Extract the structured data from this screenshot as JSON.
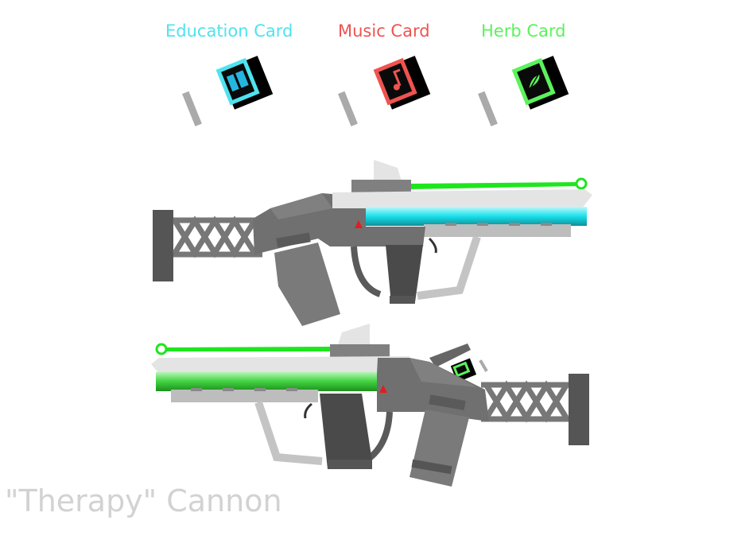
{
  "cards": [
    {
      "label": "Education Card",
      "color": "#4ee3ee",
      "icon": "book-icon"
    },
    {
      "label": "Music Card",
      "color": "#ef5350",
      "icon": "music-note-icon"
    },
    {
      "label": "Herb Card",
      "color": "#5cf25c",
      "icon": "leaf-icon"
    }
  ],
  "caption": "\"Therapy\" Cannon",
  "colors": {
    "laser": "#1ee61e",
    "barrel_top": "#26e0e8",
    "barrel_bottom": "#3ed63e",
    "warning": "#e01e1e"
  }
}
